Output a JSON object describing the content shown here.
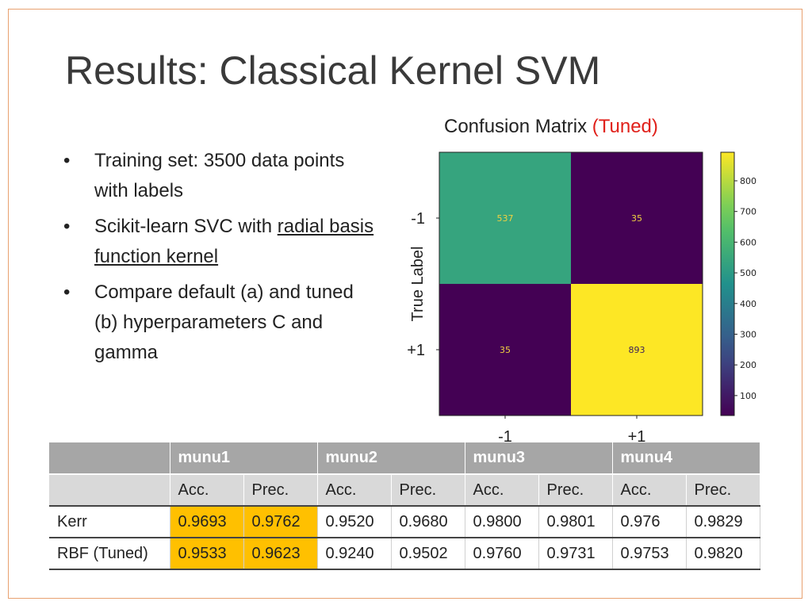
{
  "slide": {
    "title": "Results: Classical Kernel SVM",
    "bullets": [
      {
        "bullet": "•",
        "text": "Training set: 3500 data points with labels"
      },
      {
        "bullet": "•",
        "pre": "Scikit-learn SVC with ",
        "underlined": "radial basis function kernel"
      },
      {
        "bullet": "•",
        "text": "Compare default (a) and tuned (b) hyperparameters C and gamma"
      }
    ]
  },
  "chart_data": {
    "type": "heatmap",
    "title": "Confusion Matrix",
    "title_accent": "(Tuned)",
    "ylabel": "True Label",
    "xlabel": "",
    "row_labels": [
      "-1",
      "+1"
    ],
    "col_labels": [
      "-1",
      "+1"
    ],
    "values": [
      [
        537,
        35
      ],
      [
        35,
        893
      ]
    ],
    "colorbar": {
      "min": 35,
      "max": 893,
      "ticks": [
        100,
        200,
        300,
        400,
        500,
        600,
        700,
        800
      ]
    },
    "cell_label_colors": {
      "dark_bg": "#f0d040",
      "light_bg": "#3b1f5a"
    },
    "colormap": "viridis"
  },
  "table": {
    "groups": [
      "munu1",
      "munu2",
      "munu3",
      "munu4"
    ],
    "subheaders": [
      "Acc.",
      "Prec.",
      "Acc.",
      "Prec.",
      "Acc.",
      "Prec.",
      "Acc.",
      "Prec."
    ],
    "rows": [
      {
        "label": "Kerr",
        "values": [
          "0.9693",
          "0.9762",
          "0.9520",
          "0.9680",
          "0.9800",
          "0.9801",
          "0.976",
          "0.9829"
        ]
      },
      {
        "label": "RBF (Tuned)",
        "values": [
          "0.9533",
          "0.9623",
          "0.9240",
          "0.9502",
          "0.9760",
          "0.9731",
          "0.9753",
          "0.9820"
        ]
      }
    ],
    "highlight_color": "#ffc000"
  }
}
